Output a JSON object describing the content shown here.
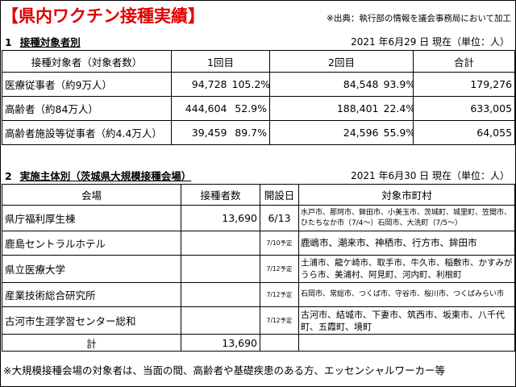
{
  "title": "【県内ワクチン接種実績】",
  "source_note": "※出典：執行部の情報を議会事務局において加工",
  "section1": {
    "number": "1",
    "title": "接種対象者別",
    "date": "2021 年6月29 日  現在（単位：人）",
    "headers": {
      "target": "接種対象者（対象者数）",
      "dose1": "1回目",
      "dose2": "2回目",
      "total": "合計"
    },
    "rows": [
      {
        "label": "医療従事者（約9万人）",
        "d1": "94,728",
        "d1_pct": "105.2%",
        "d2": "84,548",
        "d2_pct": "93.9%",
        "total": "179,276"
      },
      {
        "label": "高齢者（約84万人）",
        "d1": "444,604",
        "d1_pct": "52.9%",
        "d2": "188,401",
        "d2_pct": "22.4%",
        "total": "633,005"
      },
      {
        "label": "高齢者施設等従事者（約4.4万人）",
        "d1": "39,459",
        "d1_pct": "89.7%",
        "d2": "24,596",
        "d2_pct": "55.9%",
        "total": "64,055"
      }
    ]
  },
  "section2": {
    "number": "2",
    "title": "実施主体別（茨城県大規模接種会場）",
    "date": "2021 年6月30 日  現在（単位：人）",
    "headers": {
      "venue": "会場",
      "count": "接種者数",
      "open": "開設日",
      "areas": "対象市町村"
    },
    "rows": [
      {
        "venue": "県庁福利厚生棟",
        "count": "13,690",
        "open": "6/13",
        "areas": "水戸市、那珂市、鉾田市、小美玉市、茨城町、城里町、笠間市、ひたちなか市（7/4～）石岡市、大洗町（7/5～）"
      },
      {
        "venue": "鹿島セントラルホテル",
        "count": "",
        "open": "7/10予定",
        "areas": "鹿嶋市、潮来市、神栖市、行方市、鉾田市"
      },
      {
        "venue": "県立医療大学",
        "count": "",
        "open": "7/12予定",
        "areas": "土浦市、龍ケ崎市、取手市、牛久市、稲敷市、かすみがうら市、美浦村、阿見町、河内町、利根町"
      },
      {
        "venue": "産業技術総合研究所",
        "count": "",
        "open": "7/12予定",
        "areas": "石岡市、常総市、つくば市、守谷市、桜川市、つくばみらい市"
      },
      {
        "venue": "古河市生涯学習センター総和",
        "count": "",
        "open": "7/12予定",
        "areas": "古河市、結城市、下妻市、筑西市、坂東市、八千代町、五霞町、境町"
      }
    ],
    "total_label": "計",
    "total_value": "13,690"
  },
  "footnote": "※大規模接種会場の対象者は、当面の間、高齢者や基礎疾患のある方、エッセンシャルワーカー等",
  "colors": {
    "title": "#e00000",
    "border": "#000000",
    "background": "#ffffff"
  }
}
